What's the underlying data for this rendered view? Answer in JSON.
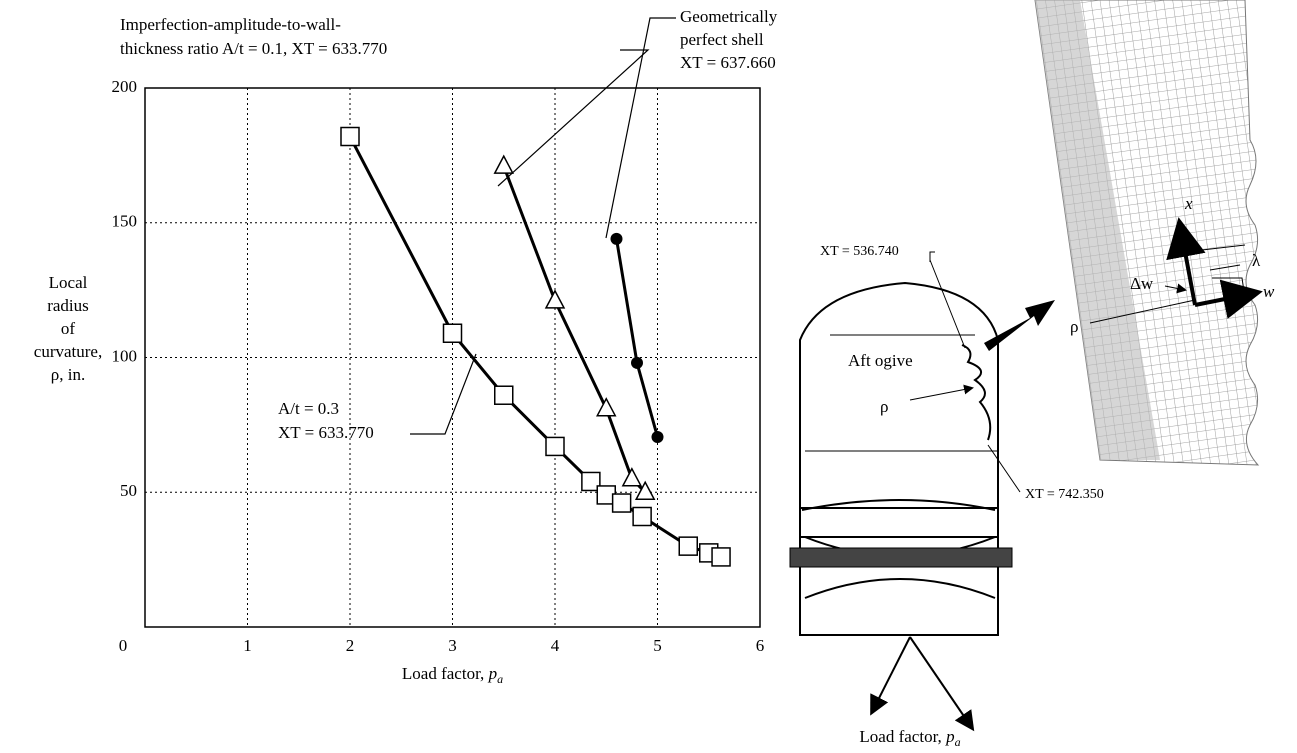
{
  "chart_data": {
    "type": "line",
    "x_label": {
      "text": "Load factor, ",
      "symbol": "p",
      "subscript": "a"
    },
    "y_label": [
      "Local",
      "radius",
      "of",
      "curvature,",
      "ρ, in."
    ],
    "xlim": [
      0,
      6
    ],
    "xticks": [
      0,
      1,
      2,
      3,
      4,
      5,
      6
    ],
    "ylim": [
      0,
      200
    ],
    "yticks": [
      0,
      50,
      100,
      150,
      200
    ],
    "grid": true,
    "series": [
      {
        "name": "A/t = 0.3",
        "marker": "square",
        "color": "#000",
        "x": [
          2.0,
          3.0,
          3.5,
          4.0,
          4.35,
          4.5,
          4.65,
          4.85,
          5.3,
          5.5,
          5.62
        ],
        "values": [
          182,
          109,
          86,
          67,
          54,
          49,
          46,
          41,
          30,
          27.5,
          26
        ]
      },
      {
        "name": "A/t = 0.1",
        "marker": "triangle",
        "color": "#000",
        "x": [
          3.5,
          4.0,
          4.5,
          4.75,
          4.88
        ],
        "values": [
          171,
          121,
          81,
          55,
          50
        ]
      },
      {
        "name": "Geometrically perfect shell",
        "marker": "circle",
        "color": "#000",
        "x": [
          4.6,
          4.8,
          5.0
        ],
        "values": [
          144,
          98,
          70.5
        ]
      }
    ],
    "annotations": [
      [
        "Imperfection-amplitude-to-wall-",
        "thickness ratio A/t = 0.1, XT = 633.770"
      ],
      [
        "Geometrically",
        "perfect shell",
        "XT = 637.660"
      ],
      [
        "A/t = 0.3",
        "XT = 633.770"
      ]
    ]
  },
  "diagram": {
    "labels": {
      "top_station": "XT = 536.740",
      "region": "Aft ogive",
      "rho_left": "ρ",
      "bottom_station": "XT = 742.350",
      "load": {
        "text": "Load factor, ",
        "symbol": "p",
        "subscript": "a"
      },
      "delta_w": "Δw",
      "lambda": "λ",
      "axis_x": "x",
      "axis_w": "w",
      "rho_right": "ρ"
    }
  }
}
